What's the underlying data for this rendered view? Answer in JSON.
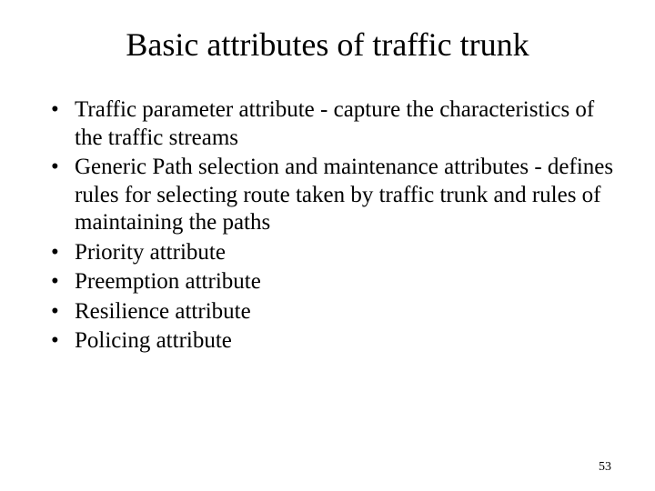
{
  "slide": {
    "title": "Basic attributes of traffic trunk",
    "bullets": [
      "Traffic parameter attribute - capture the characteristics of the traffic streams",
      "Generic Path selection and maintenance attributes - defines rules for selecting route taken by traffic trunk and rules of maintaining the paths",
      "Priority attribute",
      "Preemption attribute",
      "Resilience attribute",
      "Policing attribute"
    ],
    "page_number": "53"
  },
  "style": {
    "background_color": "#ffffff",
    "text_color": "#000000",
    "font_family": "Times New Roman",
    "title_fontsize": 36,
    "body_fontsize": 25,
    "pagenum_fontsize": 14
  }
}
